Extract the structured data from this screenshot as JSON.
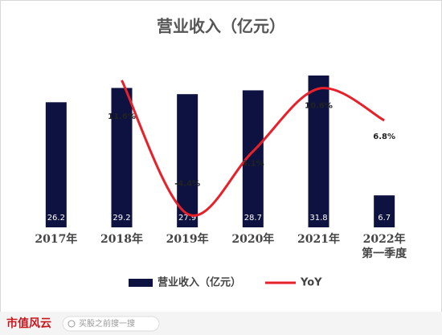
{
  "chart_data": {
    "type": "bar_line",
    "title": "营业收入（亿元）",
    "categories": [
      "2017年",
      "2018年",
      "2019年",
      "2020年",
      "2021年",
      "2022年\n第一季度"
    ],
    "series": [
      {
        "name": "营业收入（亿元）",
        "type": "bar",
        "color": "#0d1240",
        "values": [
          26.2,
          29.2,
          27.9,
          28.7,
          31.8,
          6.7
        ]
      },
      {
        "name": "YoY",
        "type": "line",
        "axis": "y2",
        "color": "#e8202a",
        "values": [
          null,
          11.6,
          -4.4,
          3.1,
          10.6,
          6.8
        ],
        "value_labels": [
          null,
          "11.6%",
          "-4.4%",
          "3.1%",
          "10.6%",
          "6.8%"
        ]
      }
    ],
    "ylim": [
      0,
      35
    ],
    "y2lim": [
      -6,
      14
    ],
    "legend": "bottom"
  },
  "footer": {
    "brand": "市值风云",
    "search": "买股之前搜一搜"
  }
}
